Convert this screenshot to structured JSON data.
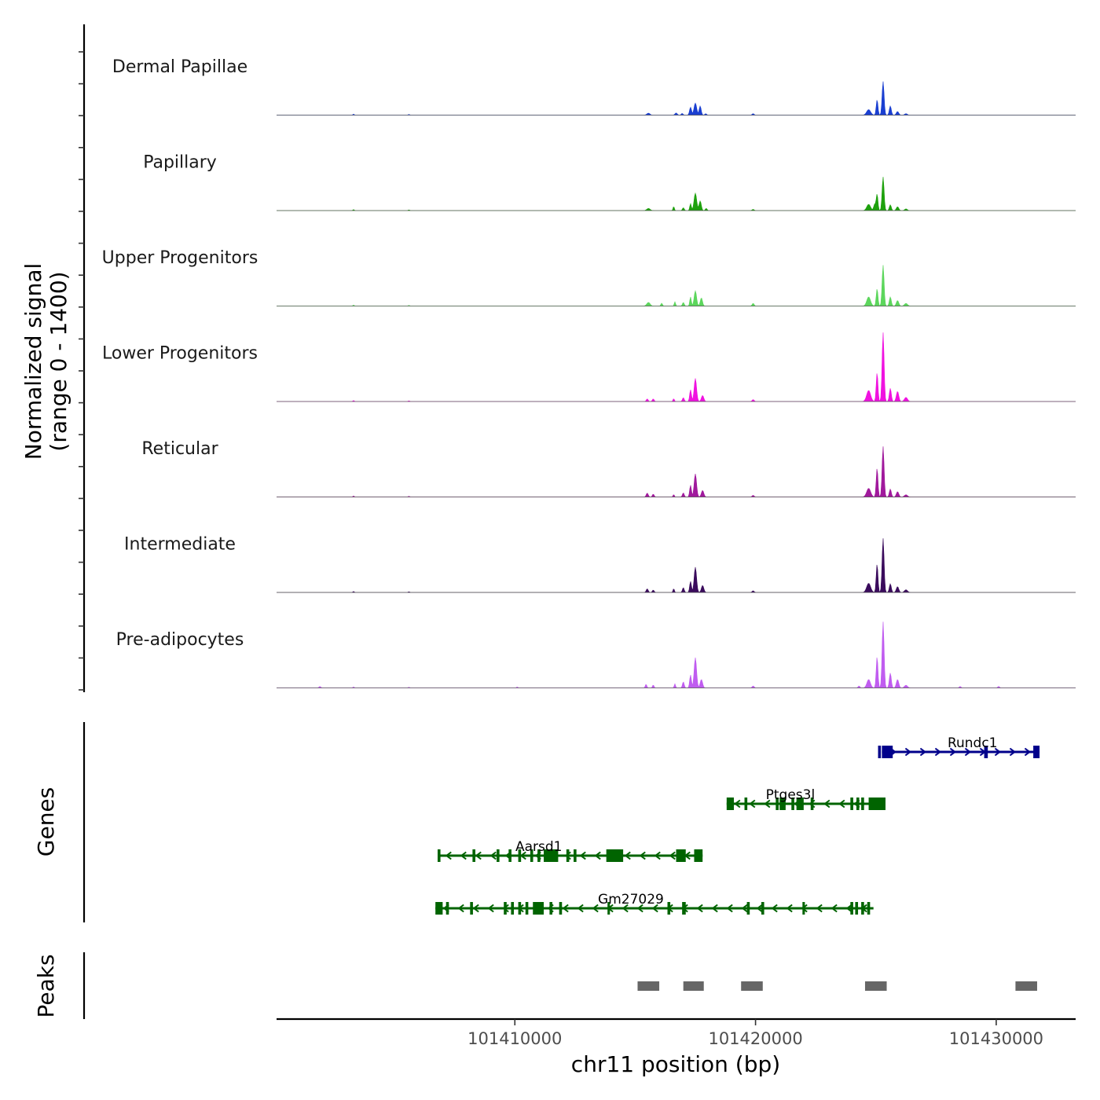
{
  "chart_data": {
    "type": "area",
    "title": "",
    "chromosome": "chr11",
    "xlabel": "chr11 position (bp)",
    "xlim": [
      101400100,
      101433300
    ],
    "xticks": [
      101410000,
      101420000,
      101430000
    ],
    "xtick_labels": [
      "101410000",
      "101420000",
      "101430000"
    ],
    "ylabel_line1": "Normalized signal",
    "ylabel_line2": "(range 0 - 1400)",
    "ylim": [
      0,
      1400
    ],
    "coverage_tracks": [
      {
        "name": "Dermal Papillae",
        "color": "#1a3fd1",
        "peaks": [
          [
            101403300,
            40,
            60
          ],
          [
            101405600,
            30,
            60
          ],
          [
            101415550,
            80,
            140
          ],
          [
            101416700,
            90,
            100
          ],
          [
            101416950,
            70,
            80
          ],
          [
            101417300,
            330,
            90
          ],
          [
            101417500,
            500,
            120
          ],
          [
            101417700,
            380,
            90
          ],
          [
            101417930,
            60,
            80
          ],
          [
            101419900,
            60,
            90
          ],
          [
            101424700,
            230,
            180
          ],
          [
            101425050,
            640,
            80
          ],
          [
            101425300,
            1400,
            90
          ],
          [
            101425600,
            380,
            90
          ],
          [
            101425900,
            150,
            110
          ],
          [
            101426250,
            60,
            120
          ]
        ]
      },
      {
        "name": "Papillary",
        "color": "#1ea10d",
        "peaks": [
          [
            101403300,
            40,
            60
          ],
          [
            101405600,
            30,
            60
          ],
          [
            101415550,
            90,
            150
          ],
          [
            101416600,
            170,
            60
          ],
          [
            101417000,
            120,
            80
          ],
          [
            101417300,
            290,
            70
          ],
          [
            101417500,
            720,
            120
          ],
          [
            101417700,
            400,
            100
          ],
          [
            101417950,
            90,
            80
          ],
          [
            101419900,
            50,
            90
          ],
          [
            101424700,
            260,
            170
          ],
          [
            101424950,
            260,
            90
          ],
          [
            101425050,
            680,
            80
          ],
          [
            101425300,
            1400,
            90
          ],
          [
            101425600,
            240,
            90
          ],
          [
            101425900,
            160,
            110
          ],
          [
            101426250,
            70,
            120
          ]
        ]
      },
      {
        "name": "Upper Progenitors",
        "color": "#5cd65c",
        "peaks": [
          [
            101403300,
            40,
            60
          ],
          [
            101405600,
            30,
            60
          ],
          [
            101415550,
            150,
            150
          ],
          [
            101416100,
            120,
            70
          ],
          [
            101416650,
            180,
            60
          ],
          [
            101417000,
            150,
            80
          ],
          [
            101417300,
            380,
            70
          ],
          [
            101417500,
            630,
            110
          ],
          [
            101417750,
            340,
            100
          ],
          [
            101419900,
            110,
            90
          ],
          [
            101424700,
            380,
            170
          ],
          [
            101425050,
            720,
            80
          ],
          [
            101425300,
            1700,
            90
          ],
          [
            101425600,
            380,
            90
          ],
          [
            101425900,
            230,
            110
          ],
          [
            101426250,
            110,
            140
          ]
        ]
      },
      {
        "name": "Lower Progenitors",
        "color": "#f012e0",
        "peaks": [
          [
            101403300,
            40,
            60
          ],
          [
            101405600,
            30,
            60
          ],
          [
            101415500,
            110,
            80
          ],
          [
            101415750,
            110,
            80
          ],
          [
            101416600,
            120,
            60
          ],
          [
            101417000,
            160,
            80
          ],
          [
            101417300,
            490,
            80
          ],
          [
            101417500,
            960,
            110
          ],
          [
            101417800,
            250,
            110
          ],
          [
            101419900,
            80,
            90
          ],
          [
            101424700,
            460,
            180
          ],
          [
            101425050,
            1200,
            80
          ],
          [
            101425300,
            2870,
            90
          ],
          [
            101425600,
            550,
            90
          ],
          [
            101425900,
            420,
            110
          ],
          [
            101426250,
            170,
            140
          ]
        ]
      },
      {
        "name": "Reticular",
        "color": "#a0199c",
        "peaks": [
          [
            101403300,
            40,
            60
          ],
          [
            101405600,
            30,
            60
          ],
          [
            101415500,
            160,
            90
          ],
          [
            101415750,
            120,
            80
          ],
          [
            101416600,
            100,
            60
          ],
          [
            101417000,
            170,
            80
          ],
          [
            101417300,
            490,
            80
          ],
          [
            101417500,
            960,
            110
          ],
          [
            101417800,
            270,
            110
          ],
          [
            101419900,
            70,
            90
          ],
          [
            101424700,
            360,
            180
          ],
          [
            101425050,
            1200,
            80
          ],
          [
            101425300,
            2100,
            90
          ],
          [
            101425600,
            330,
            90
          ],
          [
            101425900,
            220,
            110
          ],
          [
            101426250,
            90,
            140
          ]
        ]
      },
      {
        "name": "Intermediate",
        "color": "#3a0b5c",
        "peaks": [
          [
            101403300,
            40,
            60
          ],
          [
            101405600,
            30,
            60
          ],
          [
            101415500,
            150,
            90
          ],
          [
            101415750,
            100,
            80
          ],
          [
            101416600,
            160,
            60
          ],
          [
            101417000,
            200,
            80
          ],
          [
            101417300,
            460,
            80
          ],
          [
            101417500,
            1050,
            110
          ],
          [
            101417800,
            290,
            110
          ],
          [
            101419900,
            70,
            90
          ],
          [
            101424700,
            380,
            180
          ],
          [
            101425050,
            1180,
            80
          ],
          [
            101425300,
            2250,
            90
          ],
          [
            101425600,
            360,
            90
          ],
          [
            101425900,
            240,
            110
          ],
          [
            101426250,
            110,
            140
          ]
        ]
      },
      {
        "name": "Pre-adipocytes",
        "color": "#c05cf0",
        "peaks": [
          [
            101401900,
            60,
            80
          ],
          [
            101403300,
            40,
            60
          ],
          [
            101405600,
            30,
            60
          ],
          [
            101410100,
            40,
            60
          ],
          [
            101415450,
            150,
            70
          ],
          [
            101415750,
            120,
            70
          ],
          [
            101416650,
            170,
            60
          ],
          [
            101417000,
            250,
            80
          ],
          [
            101417300,
            540,
            80
          ],
          [
            101417500,
            1260,
            110
          ],
          [
            101417750,
            350,
            110
          ],
          [
            101419900,
            80,
            90
          ],
          [
            101424300,
            80,
            80
          ],
          [
            101424700,
            350,
            160
          ],
          [
            101425050,
            1300,
            80
          ],
          [
            101425300,
            2750,
            90
          ],
          [
            101425600,
            620,
            90
          ],
          [
            101425900,
            350,
            110
          ],
          [
            101426250,
            110,
            140
          ],
          [
            101428500,
            60,
            80
          ],
          [
            101430100,
            60,
            80
          ]
        ]
      }
    ],
    "genes": [
      {
        "name": "Rundc1",
        "strand": "+",
        "color": "#00008b",
        "start": 101425250,
        "end": 101431800,
        "exons": [
          [
            101425250,
            101425700
          ],
          [
            101429500,
            101429650
          ],
          [
            101431550,
            101431800
          ]
        ],
        "minor_exons": [
          101425150,
          101431600
        ]
      },
      {
        "name": "Ptges3l",
        "strand": "-",
        "color": "#006400",
        "start": 101418800,
        "end": 101425400,
        "exons": [
          [
            101418800,
            101419100
          ],
          [
            101421000,
            101421250
          ],
          [
            101421700,
            101422000
          ],
          [
            101424700,
            101425400
          ]
        ],
        "minor_exons": [
          101419600,
          101420900,
          101421550,
          101422350,
          101424000,
          101424250,
          101424450
        ]
      },
      {
        "name": "Aarsd1",
        "strand": "-",
        "color": "#006400",
        "start": 101406800,
        "end": 101417800,
        "exons": [
          [
            101411200,
            101411800
          ],
          [
            101413800,
            101414500
          ],
          [
            101416700,
            101417100
          ],
          [
            101417450,
            101417800
          ]
        ],
        "minor_exons": [
          101406850,
          101408300,
          101409300,
          101409800,
          101410200,
          101410700,
          101411000,
          101412200,
          101412500
        ]
      },
      {
        "name": "Gm27029",
        "strand": "-",
        "color": "#006400",
        "start": 101406700,
        "end": 101424900,
        "exons": [
          [
            101406700,
            101407000
          ],
          [
            101410750,
            101411200
          ],
          [
            101413850,
            101413950
          ],
          [
            101416950,
            101417100
          ],
          [
            101421950,
            101422050
          ]
        ],
        "minor_exons": [
          101407200,
          101408200,
          101409600,
          101409900,
          101410200,
          101410500,
          101411500,
          101411900,
          101416400,
          101419700,
          101420300,
          101424000,
          101424200,
          101424450,
          101424700
        ]
      }
    ],
    "peaks_track": [
      [
        101415100,
        101416000
      ],
      [
        101417000,
        101417850
      ],
      [
        101419400,
        101420300
      ],
      [
        101424550,
        101425450
      ],
      [
        101430800,
        101431700
      ]
    ],
    "peak_color": "#666666",
    "panel_labels": {
      "genes": "Genes",
      "peaks": "Peaks"
    }
  }
}
